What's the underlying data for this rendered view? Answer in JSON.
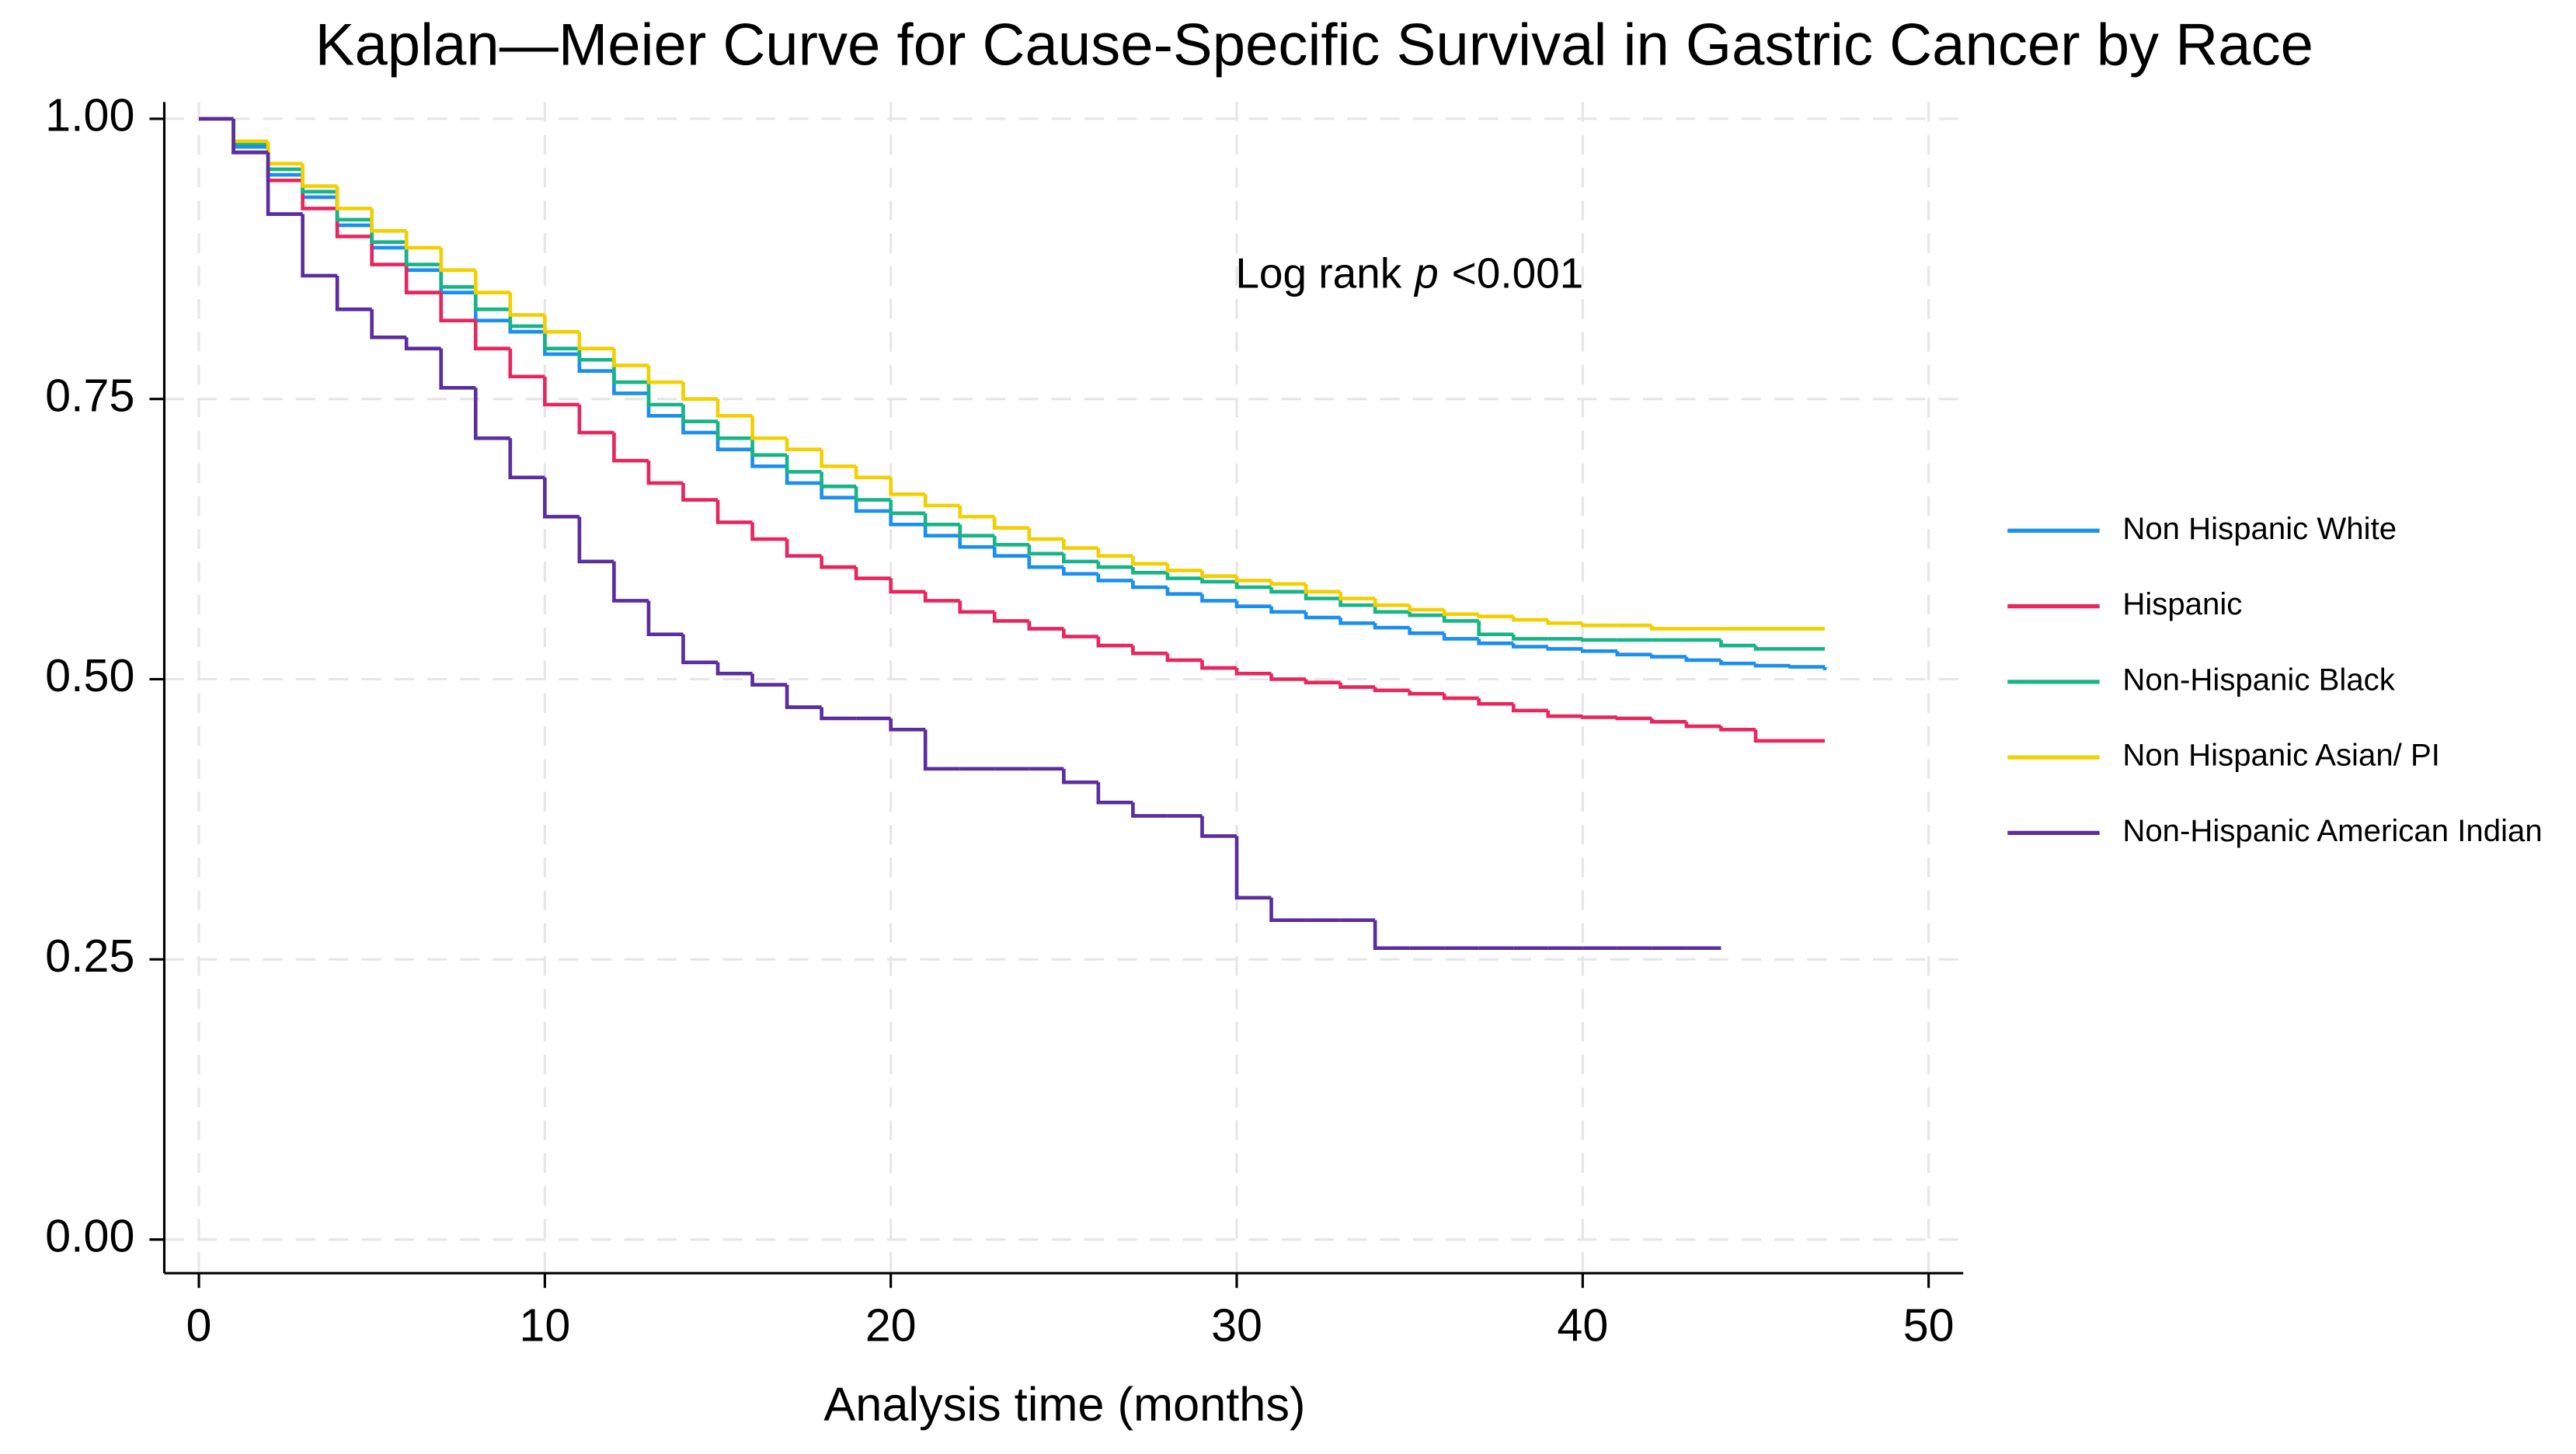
{
  "chart_data": {
    "type": "step",
    "title": "Kaplan—Meier Curve for Cause-Specific Survival in Gastric Cancer by Race",
    "x_label": "Analysis time (months)",
    "annotation": {
      "prefix": "Log rank",
      "italic": "p",
      "suffix": "<0.001"
    },
    "xlim": [
      -1,
      51
    ],
    "ylim": [
      -0.03,
      1.015
    ],
    "xticks": [
      0,
      10,
      20,
      30,
      40,
      50
    ],
    "yticks": [
      {
        "value": 0,
        "label": "0.00"
      },
      {
        "value": 0.25,
        "label": "0.25"
      },
      {
        "value": 0.5,
        "label": "0.50"
      },
      {
        "value": 0.75,
        "label": "0.75"
      },
      {
        "value": 1,
        "label": "1.00"
      }
    ],
    "grid": true,
    "legend": "right",
    "x": [
      0,
      1,
      2,
      3,
      4,
      5,
      6,
      7,
      8,
      9,
      10,
      11,
      12,
      13,
      14,
      15,
      16,
      17,
      18,
      19,
      20,
      21,
      22,
      23,
      24,
      25,
      26,
      27,
      28,
      29,
      30,
      31,
      32,
      33,
      34,
      35,
      36,
      37,
      38,
      39,
      40,
      41,
      42,
      43,
      44,
      45,
      46,
      47
    ],
    "series": [
      {
        "name": "Non Hispanic White",
        "color": "#1a8ff0",
        "values": [
          1,
          0.975,
          0.95,
          0.93,
          0.905,
          0.885,
          0.865,
          0.845,
          0.82,
          0.81,
          0.79,
          0.775,
          0.755,
          0.735,
          0.72,
          0.705,
          0.69,
          0.675,
          0.662,
          0.65,
          0.638,
          0.628,
          0.618,
          0.61,
          0.6,
          0.594,
          0.588,
          0.582,
          0.576,
          0.57,
          0.565,
          0.56,
          0.555,
          0.55,
          0.546,
          0.541,
          0.536,
          0.532,
          0.529,
          0.527,
          0.525,
          0.522,
          0.52,
          0.517,
          0.514,
          0.512,
          0.511,
          0.508
        ]
      },
      {
        "name": "Hispanic",
        "color": "#e8265e",
        "values": [
          1,
          0.97,
          0.945,
          0.92,
          0.895,
          0.87,
          0.845,
          0.82,
          0.795,
          0.77,
          0.745,
          0.72,
          0.695,
          0.675,
          0.66,
          0.64,
          0.625,
          0.61,
          0.6,
          0.59,
          0.578,
          0.57,
          0.56,
          0.552,
          0.545,
          0.538,
          0.53,
          0.523,
          0.517,
          0.51,
          0.505,
          0.5,
          0.497,
          0.493,
          0.49,
          0.487,
          0.483,
          0.478,
          0.472,
          0.467,
          0.466,
          0.465,
          0.462,
          0.458,
          0.455,
          0.445,
          0.445,
          0.445
        ]
      },
      {
        "name": "Non-Hispanic Black",
        "color": "#17b487",
        "values": [
          1,
          0.978,
          0.955,
          0.935,
          0.91,
          0.89,
          0.87,
          0.85,
          0.83,
          0.815,
          0.795,
          0.785,
          0.765,
          0.745,
          0.73,
          0.715,
          0.7,
          0.685,
          0.672,
          0.66,
          0.648,
          0.638,
          0.628,
          0.62,
          0.612,
          0.605,
          0.6,
          0.595,
          0.59,
          0.587,
          0.582,
          0.578,
          0.572,
          0.566,
          0.56,
          0.557,
          0.552,
          0.54,
          0.536,
          0.536,
          0.535,
          0.535,
          0.535,
          0.535,
          0.53,
          0.527,
          0.527,
          0.527
        ]
      },
      {
        "name": "Non Hispanic Asian/ PI",
        "color": "#f2cf00",
        "values": [
          1,
          0.98,
          0.96,
          0.94,
          0.92,
          0.9,
          0.885,
          0.865,
          0.845,
          0.825,
          0.81,
          0.795,
          0.78,
          0.765,
          0.75,
          0.735,
          0.715,
          0.705,
          0.69,
          0.68,
          0.665,
          0.655,
          0.645,
          0.635,
          0.625,
          0.617,
          0.61,
          0.603,
          0.597,
          0.592,
          0.588,
          0.585,
          0.578,
          0.572,
          0.566,
          0.562,
          0.558,
          0.556,
          0.553,
          0.55,
          0.548,
          0.548,
          0.545,
          0.545,
          0.545,
          0.545,
          0.545,
          0.545
        ]
      },
      {
        "name": "Non-Hispanic American Indian",
        "color": "#5b2d9e",
        "values": [
          1,
          0.97,
          0.915,
          0.86,
          0.83,
          0.805,
          0.795,
          0.76,
          0.715,
          0.68,
          0.645,
          0.605,
          0.57,
          0.54,
          0.515,
          0.505,
          0.495,
          0.475,
          0.465,
          0.465,
          0.455,
          0.42,
          0.42,
          0.42,
          0.42,
          0.408,
          0.39,
          0.378,
          0.378,
          0.36,
          0.305,
          0.285,
          0.285,
          0.285,
          0.26,
          0.26,
          0.26,
          0.26,
          0.26,
          0.26,
          0.26,
          0.26,
          0.26,
          0.26,
          0.26,
          null,
          null,
          null
        ]
      }
    ]
  }
}
